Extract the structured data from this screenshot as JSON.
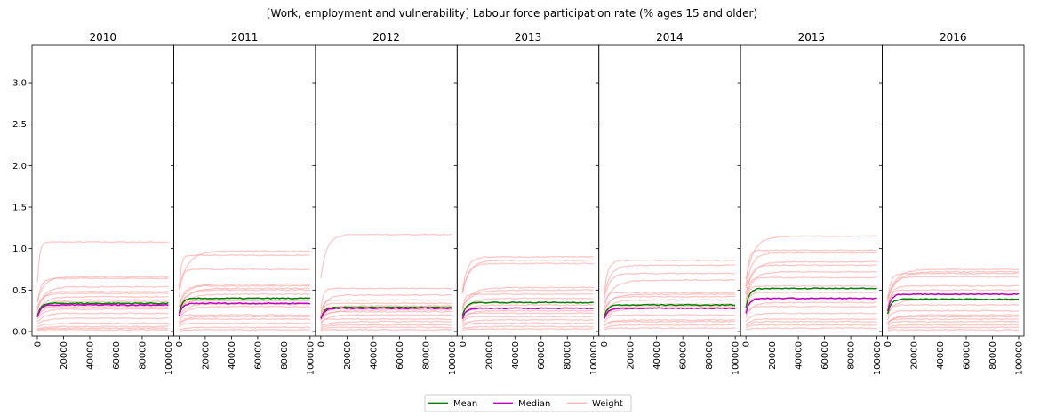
{
  "chart_data": {
    "type": "line",
    "title": "[Work, employment and vulnerability] Labour force participation rate (% ages 15 and older)",
    "x_ticks": [
      0,
      20000,
      40000,
      60000,
      80000,
      100000
    ],
    "xlim": [
      0,
      100000
    ],
    "y_ticks": [
      0.0,
      0.5,
      1.0,
      1.5,
      2.0,
      2.5,
      3.0
    ],
    "y_tick_labels": [
      "0.0",
      "0.5",
      "1.0",
      "1.5",
      "2.0",
      "2.5",
      "3.0"
    ],
    "ylim": [
      0,
      3.45
    ],
    "legend": {
      "position": "bottom-center",
      "entries": [
        {
          "name": "Mean",
          "color": "#008000"
        },
        {
          "name": "Median",
          "color": "#bf00bf"
        },
        {
          "name": "Weight",
          "color": "#ffb3b3"
        }
      ]
    },
    "panels": [
      {
        "title": "2010",
        "mean": 0.34,
        "median": 0.32,
        "weights": [
          1.08,
          0.66,
          0.64,
          0.54,
          0.48,
          0.46,
          0.42,
          0.38,
          0.36,
          0.33,
          0.3,
          0.27,
          0.22,
          0.16,
          0.1,
          0.06,
          0.04,
          0.02
        ]
      },
      {
        "title": "2011",
        "mean": 0.4,
        "median": 0.34,
        "weights": [
          0.97,
          0.92,
          0.75,
          0.57,
          0.55,
          0.52,
          0.5,
          0.45,
          0.4,
          0.37,
          0.33,
          0.3,
          0.2,
          0.18,
          0.15,
          0.1,
          0.05,
          0.02
        ]
      },
      {
        "title": "2012",
        "mean": 0.29,
        "median": 0.28,
        "weights": [
          1.17,
          0.52,
          0.44,
          0.38,
          0.34,
          0.31,
          0.3,
          0.28,
          0.26,
          0.24,
          0.2,
          0.15,
          0.12,
          0.08,
          0.05,
          0.02
        ]
      },
      {
        "title": "2013",
        "mean": 0.35,
        "median": 0.28,
        "weights": [
          0.9,
          0.86,
          0.82,
          0.53,
          0.5,
          0.45,
          0.4,
          0.35,
          0.32,
          0.28,
          0.25,
          0.22,
          0.18,
          0.14,
          0.1,
          0.06,
          0.03
        ]
      },
      {
        "title": "2014",
        "mean": 0.32,
        "median": 0.28,
        "weights": [
          0.86,
          0.8,
          0.7,
          0.62,
          0.47,
          0.45,
          0.42,
          0.38,
          0.33,
          0.3,
          0.28,
          0.2,
          0.14,
          0.12,
          0.08,
          0.04
        ]
      },
      {
        "title": "2015",
        "mean": 0.52,
        "median": 0.4,
        "weights": [
          1.15,
          0.98,
          0.95,
          0.84,
          0.8,
          0.72,
          0.65,
          0.55,
          0.47,
          0.4,
          0.35,
          0.3,
          0.22,
          0.15,
          0.12,
          0.08,
          0.04
        ]
      },
      {
        "title": "2016",
        "mean": 0.39,
        "median": 0.45,
        "weights": [
          0.75,
          0.72,
          0.7,
          0.66,
          0.55,
          0.5,
          0.45,
          0.38,
          0.32,
          0.25,
          0.2,
          0.18,
          0.15,
          0.12,
          0.08,
          0.05,
          0.02
        ]
      }
    ]
  }
}
